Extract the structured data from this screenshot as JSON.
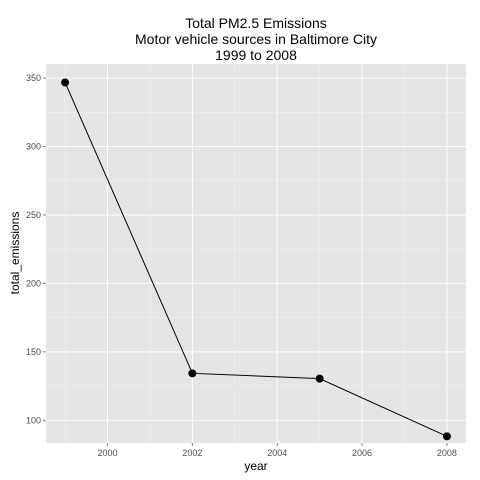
{
  "chart_data": {
    "type": "line",
    "title_lines": [
      "Total PM2.5 Emissions",
      "Motor vehicle sources in Baltimore City",
      "1999 to 2008"
    ],
    "xlabel": "year",
    "ylabel": "total_emissions",
    "x": [
      1999,
      2002,
      2005,
      2008
    ],
    "y": [
      346.82,
      134.31,
      130.43,
      88.28
    ],
    "xlim": [
      1998.55,
      2008.45
    ],
    "ylim": [
      83.4,
      360.3
    ],
    "xticks": [
      2000,
      2002,
      2004,
      2006,
      2008
    ],
    "yticks": [
      100,
      150,
      200,
      250,
      300,
      350
    ],
    "grid": true,
    "panel_color": "#e5e5e5",
    "grid_color": "#ffffff",
    "line_color": "#000000",
    "point_color": "#000000"
  }
}
